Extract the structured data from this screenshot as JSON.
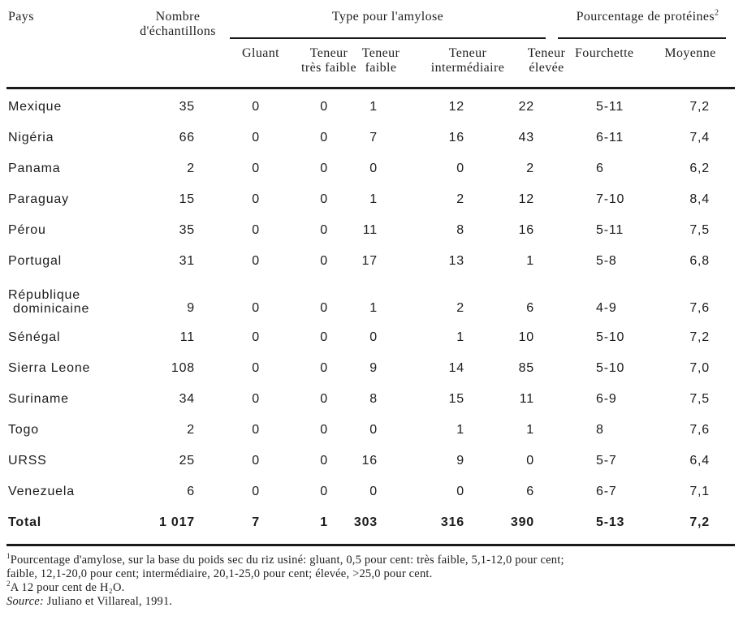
{
  "header": {
    "pays": "Pays",
    "nombre_line1": "Nombre",
    "nombre_line2": "d'échantillons",
    "amylose_group": "Type pour l'amylose",
    "proteins_group": "Pourcentage de protéines",
    "proteins_footnote_mark": "2",
    "sub": {
      "gluant": "Gluant",
      "tres_faible_l1": "Teneur",
      "tres_faible_l2": "très faible",
      "faible_l1": "Teneur",
      "faible_l2": "faible",
      "inter_l1": "Teneur",
      "inter_l2": "intermédiaire",
      "elevee_l1": "Teneur",
      "elevee_l2": "élevée",
      "fourchette": "Fourchette",
      "moyenne": "Moyenne"
    }
  },
  "table": {
    "rows": [
      {
        "pays": "Mexique",
        "values": [
          "35",
          "0",
          "0",
          "1",
          "12",
          "22",
          "5-11",
          "7,2"
        ]
      },
      {
        "pays": "Nigéria",
        "values": [
          "66",
          "0",
          "0",
          "7",
          "16",
          "43",
          "6-11",
          "7,4"
        ]
      },
      {
        "pays": "Panama",
        "values": [
          "2",
          "0",
          "0",
          "0",
          "0",
          "2",
          "6",
          "6,2"
        ]
      },
      {
        "pays": "Paraguay",
        "values": [
          "15",
          "0",
          "0",
          "1",
          "2",
          "12",
          "7-10",
          "8,4"
        ]
      },
      {
        "pays": "Pérou",
        "values": [
          "35",
          "0",
          "0",
          "11",
          "8",
          "16",
          "5-11",
          "7,5"
        ]
      },
      {
        "pays": "Portugal",
        "values": [
          "31",
          "0",
          "0",
          "17",
          "13",
          "1",
          "5-8",
          "6,8"
        ]
      },
      {
        "pays": "République dominicaine",
        "two_line": true,
        "pays_line1": "République",
        "pays_line2": "dominicaine",
        "values": [
          "9",
          "0",
          "0",
          "1",
          "2",
          "6",
          "4-9",
          "7,6"
        ]
      },
      {
        "pays": "Sénégal",
        "values": [
          "11",
          "0",
          "0",
          "0",
          "1",
          "10",
          "5-10",
          "7,2"
        ]
      },
      {
        "pays": "Sierra Leone",
        "values": [
          "108",
          "0",
          "0",
          "9",
          "14",
          "85",
          "5-10",
          "7,0"
        ]
      },
      {
        "pays": "Suriname",
        "values": [
          "34",
          "0",
          "0",
          "8",
          "15",
          "11",
          "6-9",
          "7,5"
        ]
      },
      {
        "pays": "Togo",
        "values": [
          "2",
          "0",
          "0",
          "0",
          "1",
          "1",
          "8",
          "7,6"
        ]
      },
      {
        "pays": "URSS",
        "values": [
          "25",
          "0",
          "0",
          "16",
          "9",
          "0",
          "5-7",
          "6,4"
        ]
      },
      {
        "pays": "Venezuela",
        "values": [
          "6",
          "0",
          "0",
          "0",
          "0",
          "6",
          "6-7",
          "7,1"
        ]
      },
      {
        "pays": "Total",
        "bold": true,
        "values": [
          "1 017",
          "7",
          "1",
          "303",
          "316",
          "390",
          "5-13",
          "7,2"
        ]
      }
    ]
  },
  "footnotes": {
    "fn1_mark": "1",
    "fn1_line1": "Pourcentage d'amylose, sur la base du poids sec du riz usiné: gluant, 0,5 pour cent: très faible, 5,1-12,0 pour cent;",
    "fn1_line2": "faible, 12,1-20,0 pour cent; intermédiaire, 20,1-25,0 pour cent; élevée, >25,0 pour cent.",
    "fn2_mark": "2",
    "fn2_text": "A 12 pour cent de H₂O.",
    "source_label": "Source:",
    "source_text": " Juliano et Villareal, 1991."
  }
}
